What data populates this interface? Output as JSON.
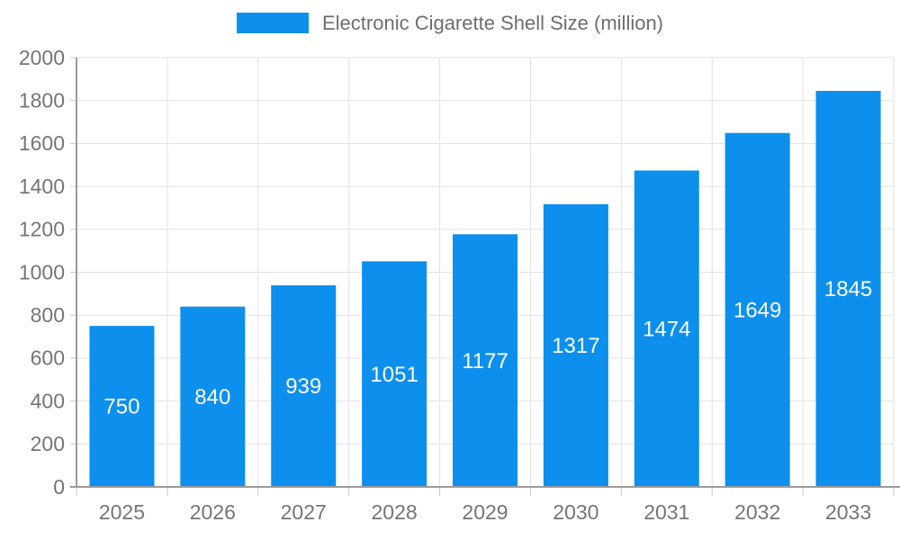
{
  "chart_data": {
    "type": "bar",
    "title": "Electronic Cigarette Shell Size (million)",
    "legend": {
      "label": "Electronic Cigarette Shell Size (million)",
      "position": "top-center"
    },
    "categories": [
      "2025",
      "2026",
      "2027",
      "2028",
      "2029",
      "2030",
      "2031",
      "2032",
      "2033"
    ],
    "series": [
      {
        "name": "Electronic Cigarette Shell Size (million)",
        "values": [
          750,
          840,
          939,
          1051,
          1177,
          1317,
          1474,
          1649,
          1845
        ]
      }
    ],
    "value_labels_shown": true,
    "xlabel": "",
    "ylabel": "",
    "ylim": [
      0,
      2000
    ],
    "yticks": [
      0,
      200,
      400,
      600,
      800,
      1000,
      1200,
      1400,
      1600,
      1800,
      2000
    ],
    "grid": true,
    "colors": {
      "bar": "#0d8fed",
      "grid_line": "#e2e2e2",
      "axis_line": "#9b9b9b",
      "tick_mark": "#c9c9c9",
      "axis_label": "#757575",
      "value_label": "#ffffff",
      "legend_text": "#6e6e6e",
      "background": "#ffffff"
    }
  }
}
